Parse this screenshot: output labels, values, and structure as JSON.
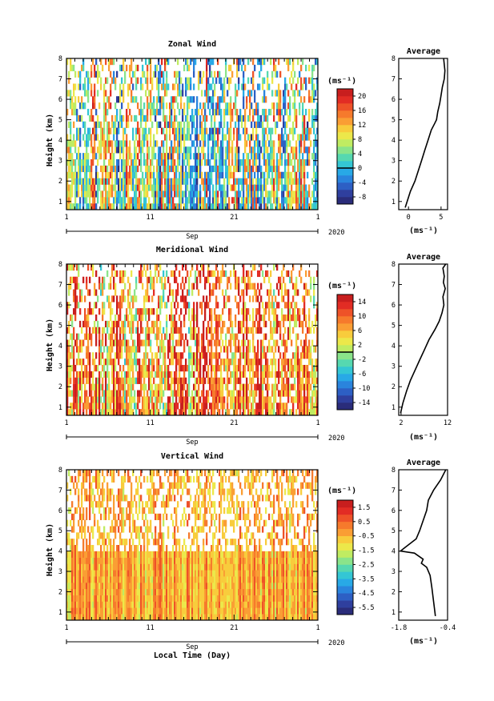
{
  "colormap": [
    "#2a2c7a",
    "#2f3f9e",
    "#2d5fc4",
    "#2a84dd",
    "#28a9e6",
    "#34c6d4",
    "#56d8b0",
    "#8ae48a",
    "#c0ec62",
    "#ece84a",
    "#f8cc3c",
    "#fa9e34",
    "#f67a2c",
    "#ee5228",
    "#e22c24",
    "#c81e1e"
  ],
  "x_axis": {
    "ticks": [
      "1",
      "11",
      "21",
      "1"
    ],
    "month": "Sep",
    "year": "2020",
    "label": "Local Time (Day)"
  },
  "units": "(ms⁻¹)",
  "chart_data": [
    {
      "type": "heatmap",
      "title": "Zonal Wind",
      "ylabel": "Height (km)",
      "ylim": [
        0.6,
        8
      ],
      "y_ticks": [
        "1",
        "2",
        "3",
        "4",
        "5",
        "6",
        "7",
        "8"
      ],
      "colorbar": {
        "ticks": [
          "20",
          "16",
          "12",
          "8",
          "4",
          "0",
          "-4",
          "-8"
        ],
        "range": [
          -10,
          22
        ],
        "zero_line": 0
      },
      "bias": 6,
      "spread": 11
    },
    {
      "type": "line",
      "title": "Average",
      "xlabel": "(ms⁻¹)",
      "xlim": [
        -1.5,
        6
      ],
      "x_ticks": [
        {
          "v": 0,
          "t": "0"
        },
        {
          "v": 5,
          "t": "5"
        }
      ],
      "ylim": [
        0.6,
        8
      ],
      "y_ticks": [
        "1",
        "2",
        "3",
        "4",
        "5",
        "6",
        "7",
        "8"
      ],
      "x": [
        -0.5,
        0.3,
        1.0,
        1.5,
        2.0,
        2.5,
        3.0,
        3.5,
        4.0,
        4.3,
        4.5,
        4.8,
        5.0,
        5.2,
        5.5,
        5.6,
        5.5,
        5.4
      ],
      "y": [
        0.7,
        1.5,
        2.0,
        2.5,
        3.0,
        3.5,
        4.0,
        4.5,
        4.8,
        5.0,
        5.4,
        5.8,
        6.2,
        6.6,
        7.0,
        7.4,
        7.7,
        8.0
      ]
    },
    {
      "type": "heatmap",
      "title": "Meridional Wind",
      "ylabel": "Height (km)",
      "ylim": [
        0.6,
        8
      ],
      "y_ticks": [
        "1",
        "2",
        "3",
        "4",
        "5",
        "6",
        "7",
        "8"
      ],
      "colorbar": {
        "ticks": [
          "14",
          "10",
          "6",
          "2",
          "-2",
          "-6",
          "-10",
          "-14"
        ],
        "range": [
          -16,
          16
        ],
        "zero_line": 0
      },
      "bias": 7,
      "spread": 9
    },
    {
      "type": "line",
      "title": "Average",
      "xlabel": "(ms⁻¹)",
      "xlim": [
        1.5,
        12
      ],
      "x_ticks": [
        {
          "v": 2,
          "t": "2"
        },
        {
          "v": 12,
          "t": "12"
        }
      ],
      "ylim": [
        0.6,
        8
      ],
      "y_ticks": [
        "1",
        "2",
        "3",
        "4",
        "5",
        "6",
        "7",
        "8"
      ],
      "x": [
        1.9,
        2.4,
        3.2,
        4.0,
        5.0,
        6.0,
        7.0,
        8.0,
        9.3,
        10.2,
        10.8,
        11.2,
        11.0,
        11.5,
        11.1,
        11.3,
        11.0,
        11.6
      ],
      "y": [
        0.7,
        1.2,
        1.8,
        2.3,
        2.8,
        3.3,
        3.8,
        4.3,
        4.8,
        5.2,
        5.6,
        6.0,
        6.4,
        6.8,
        7.1,
        7.4,
        7.8,
        8.0
      ]
    },
    {
      "type": "heatmap",
      "title": "Vertical Wind",
      "ylabel": "Height (km)",
      "ylim": [
        0.6,
        8
      ],
      "y_ticks": [
        "1",
        "2",
        "3",
        "4",
        "5",
        "6",
        "7",
        "8"
      ],
      "colorbar": {
        "ticks": [
          "1.5",
          "0.5",
          "-0.5",
          "-1.5",
          "-2.5",
          "-3.5",
          "-4.5",
          "-5.5"
        ],
        "range": [
          -6,
          2
        ]
      },
      "bias": -0.4,
      "spread": 1.0
    },
    {
      "type": "line",
      "title": "Average",
      "xlabel": "(ms⁻¹)",
      "xlim": [
        -1.8,
        -0.4
      ],
      "x_ticks": [
        {
          "v": -1.8,
          "t": "-1.8"
        },
        {
          "v": -0.4,
          "t": "-0.4"
        }
      ],
      "ylim": [
        0.6,
        8
      ],
      "y_ticks": [
        "1",
        "2",
        "3",
        "4",
        "5",
        "6",
        "7",
        "8"
      ],
      "x": [
        -0.75,
        -0.8,
        -0.85,
        -0.9,
        -1.0,
        -1.15,
        -1.1,
        -1.35,
        -1.75,
        -1.6,
        -1.3,
        -1.2,
        -1.1,
        -1.0,
        -0.95,
        -0.8,
        -0.6,
        -0.45
      ],
      "y": [
        0.8,
        1.5,
        2.2,
        2.8,
        3.2,
        3.4,
        3.6,
        3.9,
        4.0,
        4.2,
        4.6,
        5.0,
        5.5,
        6.0,
        6.5,
        7.0,
        7.5,
        8.0
      ]
    }
  ]
}
